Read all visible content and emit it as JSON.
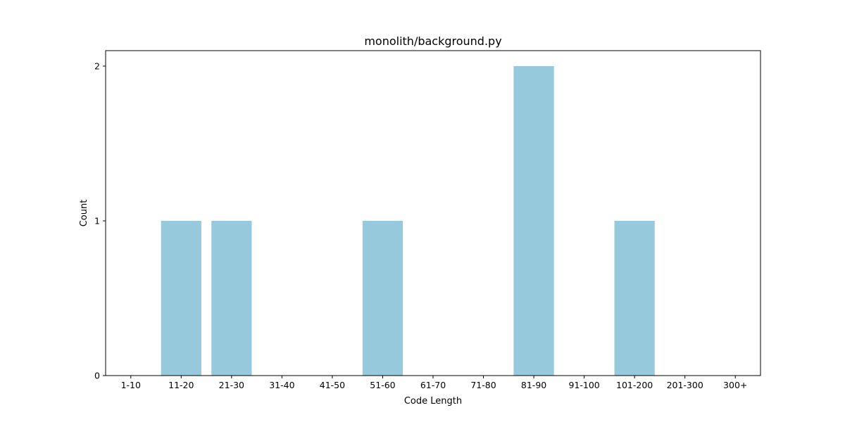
{
  "chart_data": {
    "type": "bar",
    "title": "monolith/background.py",
    "xlabel": "Code Length",
    "ylabel": "Count",
    "categories": [
      "1-10",
      "11-20",
      "21-30",
      "31-40",
      "41-50",
      "51-60",
      "61-70",
      "71-80",
      "81-90",
      "91-100",
      "101-200",
      "201-300",
      "300+"
    ],
    "values": [
      0,
      1,
      1,
      0,
      0,
      1,
      0,
      0,
      2,
      0,
      1,
      0,
      0
    ],
    "ylim": [
      0,
      2.1
    ],
    "yticks": [
      0,
      1,
      2
    ],
    "grid": false,
    "legend": false,
    "bar_color": "#96c9dc"
  }
}
